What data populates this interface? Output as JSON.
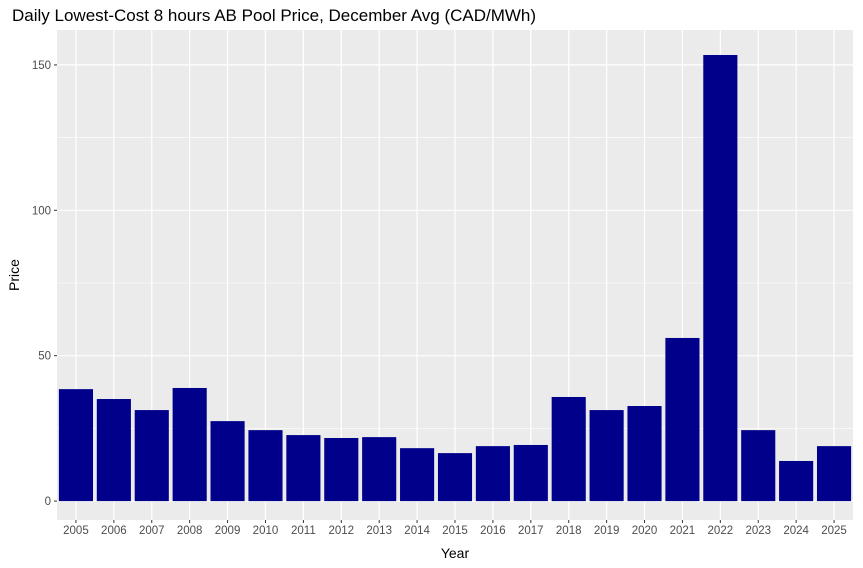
{
  "chart_data": {
    "type": "bar",
    "title": "Daily Lowest-Cost 8 hours AB Pool Price, December Avg (CAD/MWh)",
    "xlabel": "Year",
    "ylabel": "Price",
    "categories": [
      "2005",
      "2006",
      "2007",
      "2008",
      "2009",
      "2010",
      "2011",
      "2012",
      "2013",
      "2014",
      "2015",
      "2016",
      "2017",
      "2018",
      "2019",
      "2020",
      "2021",
      "2022",
      "2023",
      "2024",
      "2025"
    ],
    "values": [
      38.5,
      35.1,
      31.3,
      38.9,
      27.5,
      24.4,
      22.7,
      21.7,
      22.0,
      18.2,
      16.5,
      18.9,
      19.3,
      35.8,
      31.3,
      32.7,
      56.1,
      153.4,
      24.4,
      13.8,
      18.9
    ],
    "yticks": [
      0,
      50,
      100,
      150
    ],
    "ylim": [
      -6.5,
      162
    ],
    "grid": true,
    "bar_color": "#00008B",
    "panel_color": "#EBEBEB"
  }
}
